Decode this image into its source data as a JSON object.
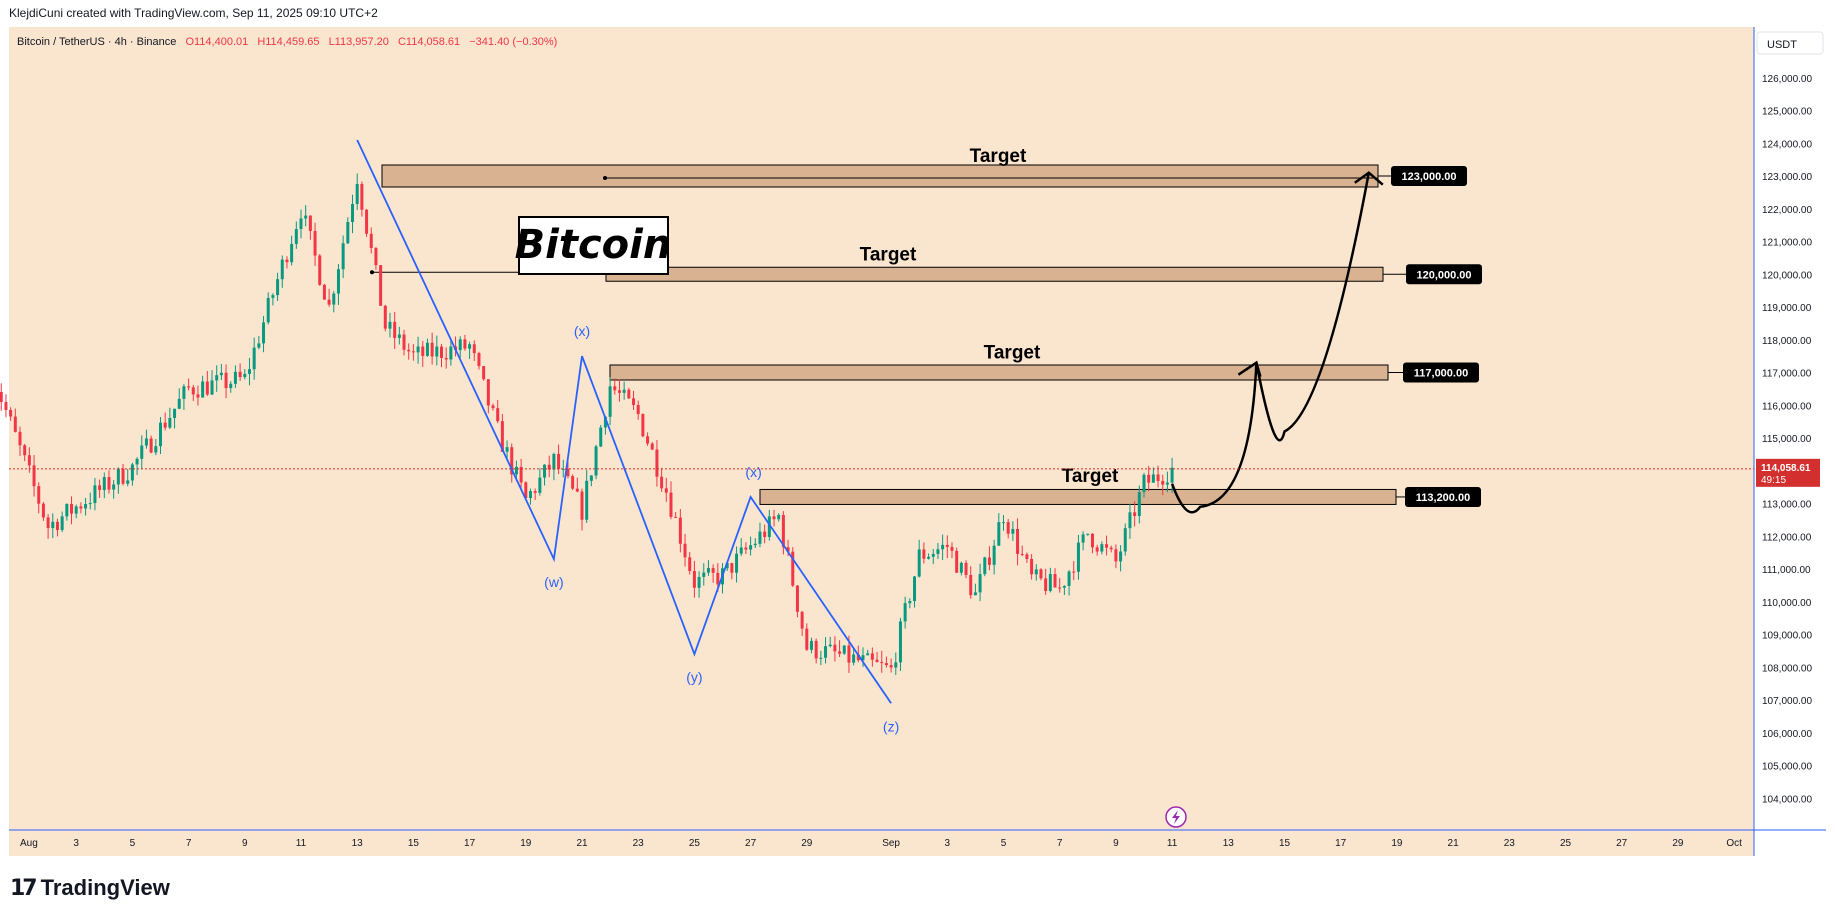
{
  "header": {
    "credit": "KlejdiCuni created with TradingView.com, Sep 11, 2025 09:10 UTC+2"
  },
  "legend": {
    "symbol": "Bitcoin / TetherUS · 4h · Binance",
    "open": "O114,400.01",
    "high": "H114,459.65",
    "low": "L113,957.20",
    "close": "C114,058.61",
    "change": "−341.40 (−0.30%)"
  },
  "currency": "USDT",
  "footer": {
    "brand": "TradingView"
  },
  "colors": {
    "background": "#fae5cf",
    "up": "#089981",
    "down": "#f23645",
    "wave": "#2962ff",
    "zone_fill": "#d2a987",
    "price_line": "#d32f2f"
  },
  "annotations": {
    "title_box": "Bitcoin",
    "wave_labels": [
      "(w)",
      "(x)",
      "(y)",
      "(x)",
      "(z)"
    ]
  },
  "chart_data": {
    "type": "candlestick",
    "title": "",
    "xlabel": "",
    "ylabel": "",
    "ylim": [
      103000,
      127000
    ],
    "y_ticks": [
      "104,000.00",
      "105,000.00",
      "106,000.00",
      "107,000.00",
      "108,000.00",
      "109,000.00",
      "110,000.00",
      "111,000.00",
      "112,000.00",
      "113,000.00",
      "114,000.00",
      "115,000.00",
      "116,000.00",
      "117,000.00",
      "118,000.00",
      "119,000.00",
      "120,000.00",
      "121,000.00",
      "122,000.00",
      "123,000.00",
      "124,000.00",
      "125,000.00",
      "126,000.00"
    ],
    "x_ticks": [
      "Aug",
      "3",
      "5",
      "7",
      "9",
      "11",
      "13",
      "15",
      "17",
      "19",
      "21",
      "23",
      "25",
      "27",
      "29",
      "Sep",
      "3",
      "5",
      "7",
      "9",
      "11",
      "13",
      "15",
      "17",
      "19",
      "21",
      "23",
      "25",
      "27",
      "29",
      "Oct"
    ],
    "current_price": {
      "value": 114058.61,
      "label": "114,058.61",
      "countdown": "49:15"
    },
    "targets": [
      {
        "label": "Target",
        "price": 123000,
        "price_label": "123,000.00"
      },
      {
        "label": "Target",
        "price": 120000,
        "price_label": "120,000.00"
      },
      {
        "label": "Target",
        "price": 117000,
        "price_label": "117,000.00"
      },
      {
        "label": "Target",
        "price": 113200,
        "price_label": "113,200.00"
      }
    ],
    "wave_points": [
      {
        "date": "Aug 13",
        "price": 124100
      },
      {
        "date": "Aug 20",
        "price": 111300,
        "label": "(w)"
      },
      {
        "date": "Aug 21",
        "price": 117500,
        "label": "(x)"
      },
      {
        "date": "Aug 25",
        "price": 108400,
        "label": "(y)"
      },
      {
        "date": "Aug 27",
        "price": 113200,
        "label": "(x)"
      },
      {
        "date": "Sep 1",
        "price": 106900,
        "label": "(z)"
      }
    ],
    "projection": [
      {
        "date": "Sep 11",
        "price": 113600
      },
      {
        "date": "Sep 12",
        "price": 112900
      },
      {
        "date": "Sep 14",
        "price": 117300
      },
      {
        "date": "Sep 15",
        "price": 115200
      },
      {
        "date": "Sep 18",
        "price": 123100
      }
    ],
    "path_anchors": [
      {
        "date": "Jul 31",
        "price": 117000
      },
      {
        "date": "Aug 2",
        "price": 112300
      },
      {
        "date": "Aug 5",
        "price": 114100
      },
      {
        "date": "Aug 7",
        "price": 116500
      },
      {
        "date": "Aug 9",
        "price": 116800
      },
      {
        "date": "Aug 11",
        "price": 122000
      },
      {
        "date": "Aug 12",
        "price": 119000
      },
      {
        "date": "Aug 13",
        "price": 123000
      },
      {
        "date": "Aug 14",
        "price": 118400
      },
      {
        "date": "Aug 15",
        "price": 117500
      },
      {
        "date": "Aug 17",
        "price": 117800
      },
      {
        "date": "Aug 18",
        "price": 115200
      },
      {
        "date": "Aug 19",
        "price": 113100
      },
      {
        "date": "Aug 20",
        "price": 114300
      },
      {
        "date": "Aug 21",
        "price": 112800
      },
      {
        "date": "Aug 22",
        "price": 116600
      },
      {
        "date": "Aug 23",
        "price": 115700
      },
      {
        "date": "Aug 24",
        "price": 113400
      },
      {
        "date": "Aug 25",
        "price": 110600
      },
      {
        "date": "Aug 26",
        "price": 110800
      },
      {
        "date": "Aug 28",
        "price": 112600
      },
      {
        "date": "Aug 29",
        "price": 108600
      },
      {
        "date": "Aug 30",
        "price": 108400
      },
      {
        "date": "Sep 1",
        "price": 107900
      },
      {
        "date": "Sep 2",
        "price": 111400
      },
      {
        "date": "Sep 3",
        "price": 111700
      },
      {
        "date": "Sep 4",
        "price": 110200
      },
      {
        "date": "Sep 5",
        "price": 112700
      },
      {
        "date": "Sep 6",
        "price": 110700
      },
      {
        "date": "Sep 7",
        "price": 110400
      },
      {
        "date": "Sep 8",
        "price": 112100
      },
      {
        "date": "Sep 9",
        "price": 111200
      },
      {
        "date": "Sep 10",
        "price": 113600
      },
      {
        "date": "Sep 11",
        "price": 114058
      }
    ]
  }
}
